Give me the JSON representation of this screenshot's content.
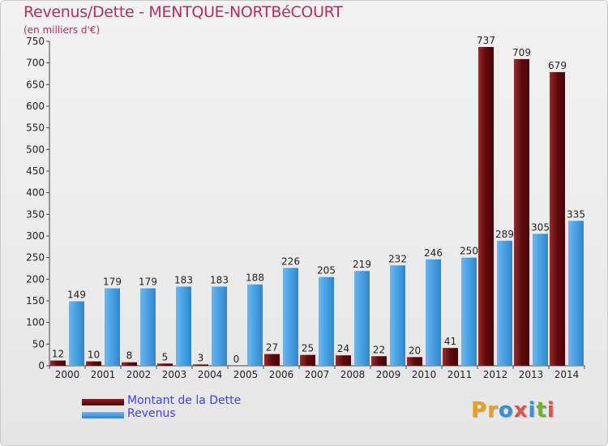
{
  "title": "Revenus/Dette - MENTQUE-NORTBéCOURT",
  "subtitle": "(en milliers d'€)",
  "colors": {
    "dette": "#6e0f12",
    "revenus": "#4a9fe0",
    "title": "#b03060",
    "legend_text": "#4040ff"
  },
  "logo": {
    "letters": [
      "P",
      "r",
      "o",
      "x",
      "i",
      "t",
      "i"
    ],
    "colors": [
      "#e8a020",
      "#e8a020",
      "#3a8fd8",
      "#e05050",
      "#3a8fd8",
      "#70b030",
      "#e05050"
    ]
  },
  "legend": [
    {
      "label": "Montant de la Dette",
      "color": "#6e0f12"
    },
    {
      "label": "Revenus",
      "color": "#4a9fe0"
    }
  ],
  "chart_data": {
    "type": "bar",
    "title": "Revenus/Dette - MENTQUE-NORTBéCOURT",
    "ylabel": "(en milliers d'€)",
    "categories": [
      "2000",
      "2001",
      "2002",
      "2003",
      "2004",
      "2005",
      "2006",
      "2007",
      "2008",
      "2009",
      "2010",
      "2011",
      "2012",
      "2013",
      "2014"
    ],
    "series": [
      {
        "name": "Montant de la Dette",
        "values": [
          12,
          10,
          8,
          5,
          3,
          0,
          27,
          25,
          24,
          22,
          20,
          41,
          737,
          709,
          679
        ]
      },
      {
        "name": "Revenus",
        "values": [
          149,
          179,
          179,
          183,
          183,
          188,
          226,
          205,
          219,
          232,
          246,
          250,
          289,
          305,
          335
        ]
      }
    ],
    "ylim": [
      0,
      750
    ],
    "yticks": [
      0,
      50,
      100,
      150,
      200,
      250,
      300,
      350,
      400,
      450,
      500,
      550,
      600,
      650,
      700,
      750
    ],
    "grid": false,
    "legend_position": "bottom-left"
  }
}
